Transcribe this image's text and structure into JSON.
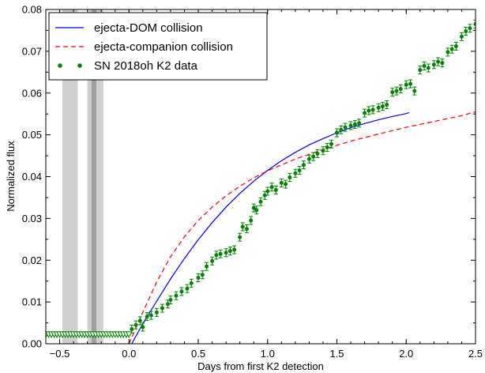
{
  "chart_data": {
    "type": "line",
    "xlabel": "Days from first K2 detection",
    "ylabel": "Normalized flux",
    "xlim": [
      -0.6,
      2.5
    ],
    "ylim": [
      0,
      0.08
    ],
    "x_ticks": [
      -0.5,
      0.0,
      0.5,
      1.0,
      1.5,
      2.0,
      2.5
    ],
    "x_tick_labels": [
      "−0.5",
      "0.0",
      "0.5",
      "1.0",
      "1.5",
      "2.0",
      "2.5"
    ],
    "y_ticks": [
      0,
      0.01,
      0.02,
      0.03,
      0.04,
      0.05,
      0.06,
      0.07,
      0.08
    ],
    "y_tick_labels": [
      "0.00",
      "0.01",
      "0.02",
      "0.03",
      "0.04",
      "0.05",
      "0.06",
      "0.07",
      "0.08"
    ],
    "grid": false,
    "legend_position": "top-left",
    "shaded_intervals": [
      {
        "x": [
          -0.48,
          -0.37
        ],
        "shade": "light"
      },
      {
        "x": [
          -0.3,
          -0.185
        ],
        "shade": "light"
      },
      {
        "x": [
          -0.27,
          -0.235
        ],
        "shade": "dark"
      }
    ],
    "series": [
      {
        "name": "ejecta-DOM collision",
        "style": "line-solid",
        "color": "#0000ff",
        "x": [
          0.02,
          0.1,
          0.2,
          0.3,
          0.4,
          0.5,
          0.6,
          0.7,
          0.8,
          0.9,
          1.0,
          1.1,
          1.2,
          1.3,
          1.4,
          1.5,
          1.6,
          1.7,
          1.8,
          1.9,
          2.0,
          2.02
        ],
        "y": [
          0.0,
          0.0048,
          0.0102,
          0.0155,
          0.0204,
          0.0249,
          0.029,
          0.0327,
          0.036,
          0.0389,
          0.0415,
          0.0438,
          0.0458,
          0.0476,
          0.0491,
          0.0505,
          0.0517,
          0.0527,
          0.0536,
          0.0544,
          0.0551,
          0.0553
        ]
      },
      {
        "name": "ejecta-companion collision",
        "style": "line-dashed",
        "color": "#ff0000",
        "x": [
          0.0,
          0.1,
          0.2,
          0.3,
          0.4,
          0.5,
          0.6,
          0.7,
          0.8,
          0.9,
          1.0,
          1.2,
          1.4,
          1.6,
          1.8,
          2.0,
          2.2,
          2.4,
          2.5
        ],
        "y": [
          0.0,
          0.0075,
          0.0148,
          0.0208,
          0.0256,
          0.0295,
          0.0327,
          0.0354,
          0.0377,
          0.0397,
          0.0414,
          0.0442,
          0.0465,
          0.0485,
          0.0502,
          0.0518,
          0.0532,
          0.0546,
          0.0555
        ]
      },
      {
        "name": "SN 2018oh K2 data",
        "style": "points-errorbars",
        "color": "#008000",
        "x": [
          0.02,
          0.05,
          0.08,
          0.1,
          0.13,
          0.16,
          0.2,
          0.24,
          0.28,
          0.3,
          0.34,
          0.38,
          0.42,
          0.45,
          0.5,
          0.53,
          0.56,
          0.6,
          0.63,
          0.66,
          0.7,
          0.73,
          0.76,
          0.8,
          0.82,
          0.85,
          0.88,
          0.9,
          0.92,
          0.95,
          0.98,
          1.0,
          1.03,
          1.06,
          1.1,
          1.13,
          1.16,
          1.2,
          1.23,
          1.26,
          1.3,
          1.33,
          1.36,
          1.4,
          1.43,
          1.46,
          1.5,
          1.53,
          1.56,
          1.6,
          1.63,
          1.66,
          1.7,
          1.73,
          1.76,
          1.8,
          1.83,
          1.86,
          1.9,
          1.93,
          1.96,
          2.0,
          2.03,
          2.06,
          2.1,
          2.13,
          2.16,
          2.2,
          2.23,
          2.26,
          2.3,
          2.33,
          2.36,
          2.4,
          2.43,
          2.46,
          2.5
        ],
        "y": [
          0.0035,
          0.0045,
          0.0055,
          0.004,
          0.0065,
          0.0068,
          0.0075,
          0.0085,
          0.0095,
          0.0105,
          0.0115,
          0.0125,
          0.0132,
          0.0145,
          0.0158,
          0.0165,
          0.0185,
          0.0198,
          0.0212,
          0.0215,
          0.0218,
          0.0222,
          0.0225,
          0.0255,
          0.028,
          0.0275,
          0.0295,
          0.0325,
          0.032,
          0.034,
          0.0355,
          0.0365,
          0.0375,
          0.0368,
          0.0385,
          0.0382,
          0.0398,
          0.0408,
          0.0415,
          0.0428,
          0.0442,
          0.0448,
          0.0455,
          0.0462,
          0.047,
          0.0478,
          0.0505,
          0.0512,
          0.0518,
          0.0522,
          0.0525,
          0.0528,
          0.0552,
          0.0558,
          0.056,
          0.0565,
          0.0568,
          0.0572,
          0.0602,
          0.0605,
          0.061,
          0.062,
          0.0622,
          0.0605,
          0.0655,
          0.0665,
          0.066,
          0.0668,
          0.0675,
          0.0672,
          0.0698,
          0.0705,
          0.0712,
          0.0735,
          0.0748,
          0.0755,
          0.0765
        ]
      },
      {
        "name": "",
        "style": "triangles-upper-limits",
        "color": "#008000",
        "x": [
          -0.6,
          -0.58,
          -0.56,
          -0.54,
          -0.52,
          -0.5,
          -0.48,
          -0.46,
          -0.44,
          -0.42,
          -0.4,
          -0.38,
          -0.36,
          -0.34,
          -0.32,
          -0.3,
          -0.28,
          -0.26,
          -0.24,
          -0.22,
          -0.2,
          -0.18,
          -0.16,
          -0.14,
          -0.12,
          -0.1,
          -0.08,
          -0.06,
          -0.04,
          -0.02,
          0.0
        ],
        "y": [
          0.0023,
          0.0023,
          0.0023,
          0.0023,
          0.0023,
          0.0023,
          0.0023,
          0.0023,
          0.0023,
          0.0023,
          0.0023,
          0.0023,
          0.0023,
          0.0023,
          0.0023,
          0.0023,
          0.0023,
          0.0023,
          0.0023,
          0.0023,
          0.0023,
          0.0023,
          0.0023,
          0.0023,
          0.0023,
          0.0023,
          0.0023,
          0.0023,
          0.0023,
          0.0023,
          0.0023
        ]
      }
    ]
  },
  "legend": [
    {
      "label": "ejecta-DOM collision",
      "style": "line-solid",
      "color": "#0000ff"
    },
    {
      "label": "ejecta-companion collision",
      "style": "line-dashed",
      "color": "#ff0000"
    },
    {
      "label": "SN 2018oh K2 data",
      "style": "points",
      "color": "#008000"
    }
  ]
}
